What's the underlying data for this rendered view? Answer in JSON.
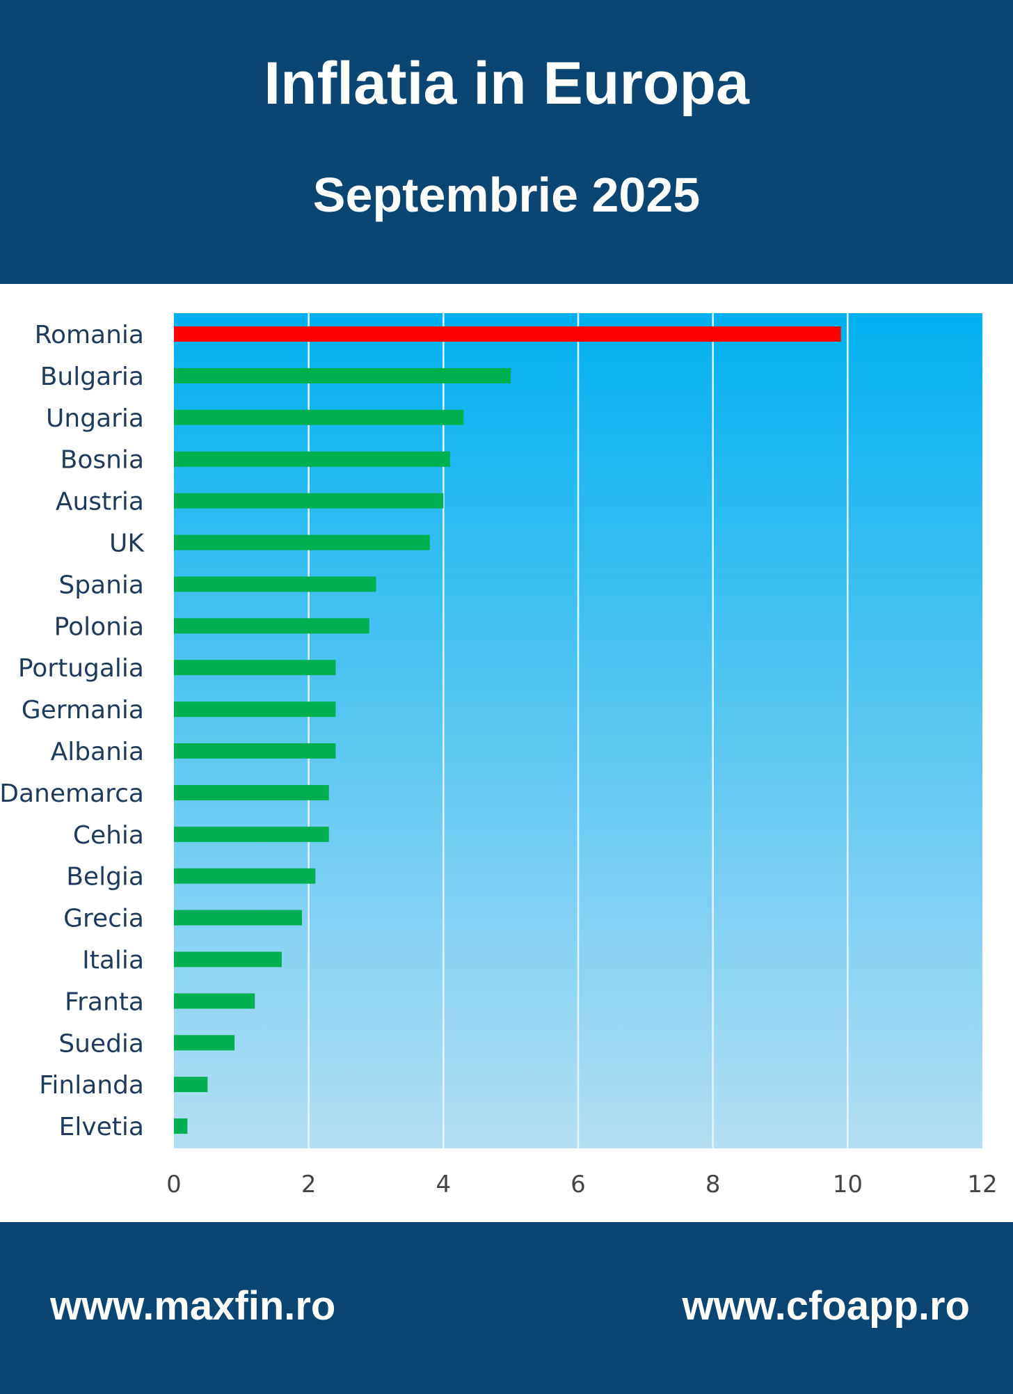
{
  "header": {
    "title": "Inflatia in Europa",
    "subtitle": "Septembrie 2025"
  },
  "footer": {
    "left_link": "www.maxfin.ro",
    "right_link": "www.cfoapp.ro"
  },
  "colors": {
    "header_bg": "#0b4673",
    "highlight_bar": "#ff0000",
    "bar": "#00b050",
    "plot_bg_top": "#00b0f0",
    "plot_bg_bottom": "#b4def4"
  },
  "chart_data": {
    "type": "bar",
    "orientation": "horizontal",
    "categories": [
      "Romania",
      "Bulgaria",
      "Ungaria",
      "Bosnia",
      "Austria",
      "UK",
      "Spania",
      "Polonia",
      "Portugalia",
      "Germania",
      "Albania",
      "Danemarca",
      "Cehia",
      "Belgia",
      "Grecia",
      "Italia",
      "Franta",
      "Suedia",
      "Finlanda",
      "Elvetia"
    ],
    "values": [
      9.9,
      5.0,
      4.3,
      4.1,
      4.0,
      3.8,
      3.0,
      2.9,
      2.4,
      2.4,
      2.4,
      2.3,
      2.3,
      2.1,
      1.9,
      1.6,
      1.2,
      0.9,
      0.5,
      0.2
    ],
    "highlight": "Romania",
    "xlim": [
      0,
      12
    ],
    "xticks": [
      0,
      2,
      4,
      6,
      8,
      10,
      12
    ],
    "grid": "vertical",
    "legend": "none",
    "title": "Inflatia in Europa",
    "subtitle": "Septembrie 2025",
    "xlabel": "",
    "ylabel": ""
  }
}
